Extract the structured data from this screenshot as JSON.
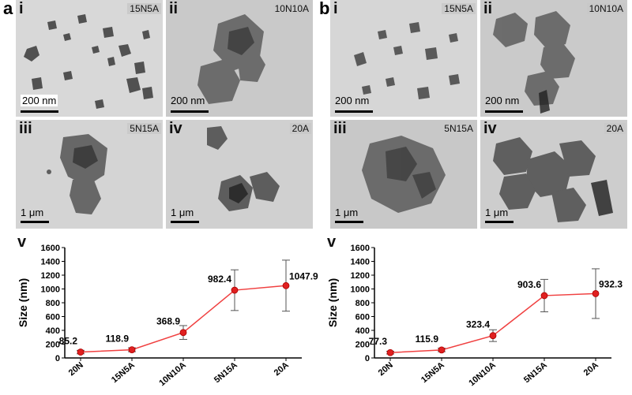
{
  "figure": {
    "panel_a": {
      "letter": "a",
      "images": [
        {
          "roman": "i",
          "sample": "15N5A",
          "scale": "200 nm"
        },
        {
          "roman": "ii",
          "sample": "10N10A",
          "scale": "200 nm"
        },
        {
          "roman": "iii",
          "sample": "5N15A",
          "scale": "1 μm"
        },
        {
          "roman": "iv",
          "sample": "20A",
          "scale": "1 μm"
        }
      ]
    },
    "panel_b": {
      "letter": "b",
      "images": [
        {
          "roman": "i",
          "sample": "15N5A",
          "scale": "200 nm"
        },
        {
          "roman": "ii",
          "sample": "10N10A",
          "scale": "200 nm"
        },
        {
          "roman": "iii",
          "sample": "5N15A",
          "scale": "1 μm"
        },
        {
          "roman": "iv",
          "sample": "20A",
          "scale": "1 μm"
        }
      ]
    }
  },
  "chart_data": [
    {
      "type": "line",
      "panel_label": "v",
      "categories": [
        "20N",
        "15N5A",
        "10N10A",
        "5N15A",
        "20A"
      ],
      "values": [
        85.2,
        118.9,
        368.9,
        982.4,
        1047.9
      ],
      "value_labels": [
        "85.2",
        "118.9",
        "368.9",
        "982.4",
        "1047.9"
      ],
      "error": [
        25,
        28,
        100,
        295,
        370
      ],
      "ylabel": "Size (nm)",
      "ylim": [
        0,
        1600
      ],
      "yticks": [
        "0",
        "200",
        "400",
        "600",
        "800",
        "1000",
        "1200",
        "1400",
        "1600"
      ],
      "line_color": "#f04040",
      "marker_color": "#e02020"
    },
    {
      "type": "line",
      "panel_label": "v",
      "categories": [
        "20N",
        "15N5A",
        "10N10A",
        "5N15A",
        "20A"
      ],
      "values": [
        77.3,
        115.9,
        323.4,
        903.6,
        932.3
      ],
      "value_labels": [
        "77.3",
        "115.9",
        "323.4",
        "903.6",
        "932.3"
      ],
      "error": [
        20,
        25,
        85,
        235,
        360
      ],
      "ylabel": "Size (nm)",
      "ylim": [
        0,
        1600
      ],
      "yticks": [
        "0",
        "200",
        "400",
        "600",
        "800",
        "1000",
        "1200",
        "1400",
        "1600"
      ],
      "line_color": "#f04040",
      "marker_color": "#e02020"
    }
  ]
}
